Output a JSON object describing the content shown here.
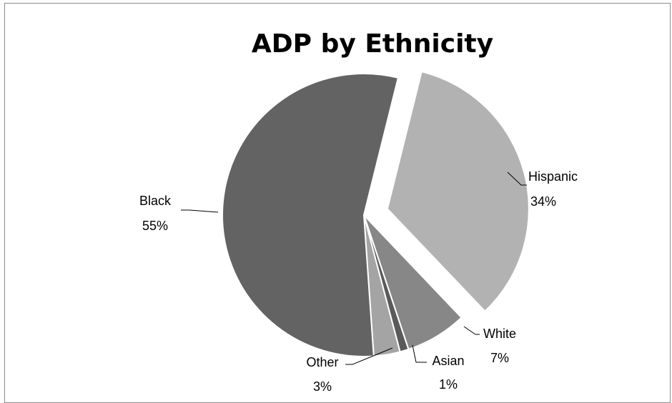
{
  "chart_data": {
    "type": "pie",
    "title": "ADP by Ethnicity",
    "slices": [
      {
        "name": "Hispanic",
        "value": 34,
        "label": "34%",
        "color": "#b2b2b2",
        "exploded": true
      },
      {
        "name": "White",
        "value": 7,
        "label": "7%",
        "color": "#878787",
        "exploded": false
      },
      {
        "name": "Asian",
        "value": 1,
        "label": "1%",
        "color": "#5a5a5a",
        "exploded": false
      },
      {
        "name": "Other",
        "value": 3,
        "label": "3%",
        "color": "#a4a4a4",
        "exploded": false
      },
      {
        "name": "Black",
        "value": 55,
        "label": "55%",
        "color": "#636363",
        "exploded": false
      }
    ]
  }
}
